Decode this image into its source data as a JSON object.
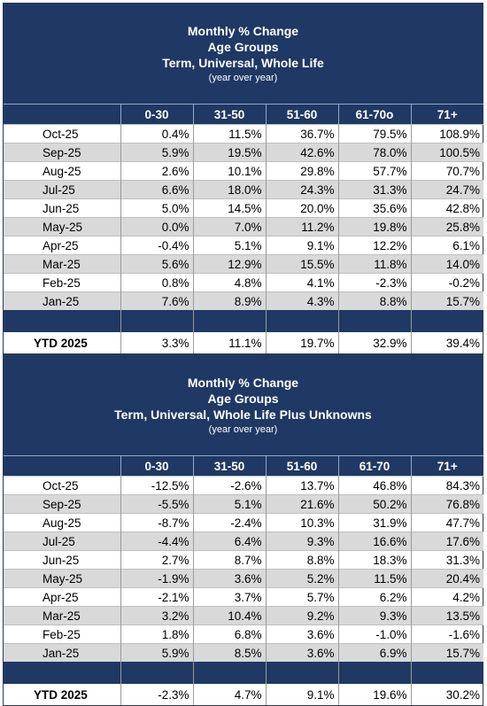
{
  "table1": {
    "title": "Monthly % Change",
    "subtitle": "Age Groups",
    "products": "Term, Universal, Whole Life",
    "note": "(year over year)",
    "columns": [
      "0-30",
      "31-50",
      "51-60",
      "61-70o",
      "71+"
    ],
    "rows": [
      {
        "month": "Oct-25",
        "values": [
          "0.4%",
          "11.5%",
          "36.7%",
          "79.5%",
          "108.9%"
        ]
      },
      {
        "month": "Sep-25",
        "values": [
          "5.9%",
          "19.5%",
          "42.6%",
          "78.0%",
          "100.5%"
        ]
      },
      {
        "month": "Aug-25",
        "values": [
          "2.6%",
          "10.1%",
          "29.8%",
          "57.7%",
          "70.7%"
        ]
      },
      {
        "month": "Jul-25",
        "values": [
          "6.6%",
          "18.0%",
          "24.3%",
          "31.3%",
          "24.7%"
        ]
      },
      {
        "month": "Jun-25",
        "values": [
          "5.0%",
          "14.5%",
          "20.0%",
          "35.6%",
          "42.8%"
        ]
      },
      {
        "month": "May-25",
        "values": [
          "0.0%",
          "7.0%",
          "11.2%",
          "19.8%",
          "25.8%"
        ]
      },
      {
        "month": "Apr-25",
        "values": [
          "-0.4%",
          "5.1%",
          "9.1%",
          "12.2%",
          "6.1%"
        ]
      },
      {
        "month": "Mar-25",
        "values": [
          "5.6%",
          "12.9%",
          "15.5%",
          "11.8%",
          "14.0%"
        ]
      },
      {
        "month": "Feb-25",
        "values": [
          "0.8%",
          "4.8%",
          "4.1%",
          "-2.3%",
          "-0.2%"
        ]
      },
      {
        "month": "Jan-25",
        "values": [
          "7.6%",
          "8.9%",
          "4.3%",
          "8.8%",
          "15.7%"
        ]
      }
    ],
    "ytd": {
      "label": "YTD 2025",
      "values": [
        "3.3%",
        "11.1%",
        "19.7%",
        "32.9%",
        "39.4%"
      ]
    }
  },
  "table2": {
    "title": "Monthly % Change",
    "subtitle": "Age Groups",
    "products": "Term, Universal, Whole Life Plus Unknowns",
    "note": "(year over year)",
    "columns": [
      "0-30",
      "31-50",
      "51-60",
      "61-70",
      "71+"
    ],
    "rows": [
      {
        "month": "Oct-25",
        "values": [
          "-12.5%",
          "-2.6%",
          "13.7%",
          "46.8%",
          "84.3%"
        ]
      },
      {
        "month": "Sep-25",
        "values": [
          "-5.5%",
          "5.1%",
          "21.6%",
          "50.2%",
          "76.8%"
        ]
      },
      {
        "month": "Aug-25",
        "values": [
          "-8.7%",
          "-2.4%",
          "10.3%",
          "31.9%",
          "47.7%"
        ]
      },
      {
        "month": "Jul-25",
        "values": [
          "-4.4%",
          "6.4%",
          "9.3%",
          "16.6%",
          "17.6%"
        ]
      },
      {
        "month": "Jun-25",
        "values": [
          "2.7%",
          "8.7%",
          "8.8%",
          "18.3%",
          "31.3%"
        ]
      },
      {
        "month": "May-25",
        "values": [
          "-1.9%",
          "3.6%",
          "5.2%",
          "11.5%",
          "20.4%"
        ]
      },
      {
        "month": "Apr-25",
        "values": [
          "-2.1%",
          "3.7%",
          "5.7%",
          "6.2%",
          "4.2%"
        ]
      },
      {
        "month": "Mar-25",
        "values": [
          "3.2%",
          "10.4%",
          "9.2%",
          "9.3%",
          "13.5%"
        ]
      },
      {
        "month": "Feb-25",
        "values": [
          "1.8%",
          "6.8%",
          "3.6%",
          "-1.0%",
          "-1.6%"
        ]
      },
      {
        "month": "Jan-25",
        "values": [
          "5.9%",
          "8.5%",
          "3.6%",
          "6.9%",
          "15.7%"
        ]
      }
    ],
    "ytd": {
      "label": "YTD 2025",
      "values": [
        "-2.3%",
        "4.7%",
        "9.1%",
        "19.6%",
        "30.2%"
      ]
    }
  }
}
